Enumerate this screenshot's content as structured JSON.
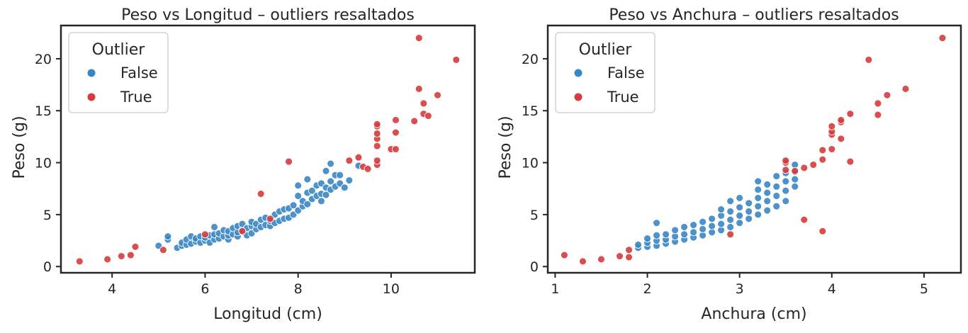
{
  "colors": {
    "false": "#3a86c4",
    "true": "#d63b3d",
    "axis": "#262626"
  },
  "chart_data": [
    {
      "type": "scatter",
      "title": "Peso vs Longitud – outliers resaltados",
      "xlabel": "Longitud (cm)",
      "ylabel": "Peso (g)",
      "xlim": [
        2.9,
        11.8
      ],
      "ylim": [
        -0.6,
        23.2
      ],
      "xticks": [
        "4",
        "6",
        "8",
        "10"
      ],
      "yticks": [
        "0",
        "5",
        "10",
        "15",
        "20"
      ],
      "xtick_values": [
        4,
        6,
        8,
        10
      ],
      "ytick_values": [
        0,
        5,
        10,
        15,
        20
      ],
      "legend": {
        "title": "Outlier",
        "entries": [
          "False",
          "True"
        ],
        "placement": "top-left"
      },
      "series": [
        {
          "name": "False",
          "points": [
            [
              5,
              2.0
            ],
            [
              5.2,
              2.6
            ],
            [
              5.2,
              2.9
            ],
            [
              5.4,
              1.8
            ],
            [
              5.5,
              2.0
            ],
            [
              5.5,
              2.3
            ],
            [
              5.6,
              2.1
            ],
            [
              5.6,
              2.6
            ],
            [
              5.7,
              2.2
            ],
            [
              5.7,
              2.9
            ],
            [
              5.8,
              2.4
            ],
            [
              5.8,
              2.7
            ],
            [
              5.9,
              2.3
            ],
            [
              5.9,
              2.9
            ],
            [
              6.0,
              2.5
            ],
            [
              6.0,
              2.8
            ],
            [
              6.1,
              2.3
            ],
            [
              6.1,
              3.0
            ],
            [
              6.2,
              2.6
            ],
            [
              6.2,
              3.1
            ],
            [
              6.2,
              3.8
            ],
            [
              6.3,
              2.7
            ],
            [
              6.3,
              3.2
            ],
            [
              6.4,
              2.9
            ],
            [
              6.4,
              3.5
            ],
            [
              6.5,
              2.6
            ],
            [
              6.5,
              3.0
            ],
            [
              6.5,
              3.4
            ],
            [
              6.6,
              3.1
            ],
            [
              6.6,
              3.7
            ],
            [
              6.7,
              2.9
            ],
            [
              6.7,
              3.3
            ],
            [
              6.7,
              3.9
            ],
            [
              6.8,
              3.5
            ],
            [
              6.8,
              4.1
            ],
            [
              6.9,
              3.0
            ],
            [
              6.9,
              3.7
            ],
            [
              7.0,
              3.2
            ],
            [
              7.0,
              3.9
            ],
            [
              7.0,
              4.3
            ],
            [
              7.1,
              3.6
            ],
            [
              7.1,
              4.1
            ],
            [
              7.2,
              3.8
            ],
            [
              7.2,
              4.5
            ],
            [
              7.3,
              4.0
            ],
            [
              7.3,
              4.7
            ],
            [
              7.4,
              3.9
            ],
            [
              7.4,
              4.4
            ],
            [
              7.5,
              4.2
            ],
            [
              7.5,
              5.0
            ],
            [
              7.6,
              4.4
            ],
            [
              7.6,
              5.3
            ],
            [
              7.7,
              4.6
            ],
            [
              7.7,
              5.5
            ],
            [
              7.8,
              4.7
            ],
            [
              7.8,
              5.6
            ],
            [
              7.9,
              5.0
            ],
            [
              7.9,
              5.9
            ],
            [
              8.0,
              5.4
            ],
            [
              8.0,
              6.8
            ],
            [
              8.0,
              7.8
            ],
            [
              8.1,
              5.8
            ],
            [
              8.1,
              6.3
            ],
            [
              8.2,
              6.0
            ],
            [
              8.2,
              7.1
            ],
            [
              8.2,
              8.4
            ],
            [
              8.3,
              6.5
            ],
            [
              8.3,
              7.3
            ],
            [
              8.4,
              6.8
            ],
            [
              8.4,
              7.8
            ],
            [
              8.5,
              6.3
            ],
            [
              8.5,
              7.0
            ],
            [
              8.5,
              8.0
            ],
            [
              8.6,
              6.9
            ],
            [
              8.6,
              7.6
            ],
            [
              8.6,
              9.2
            ],
            [
              8.7,
              7.4
            ],
            [
              8.7,
              8.2
            ],
            [
              8.7,
              9.9
            ],
            [
              8.8,
              7.7
            ],
            [
              8.8,
              8.8
            ],
            [
              8.9,
              8.0
            ],
            [
              8.9,
              8.8
            ],
            [
              9.0,
              7.6
            ],
            [
              9.1,
              8.3
            ],
            [
              9.3,
              9.7
            ]
          ]
        },
        {
          "name": "True",
          "points": [
            [
              3.3,
              0.5
            ],
            [
              3.9,
              0.7
            ],
            [
              4.2,
              1.0
            ],
            [
              4.4,
              1.1
            ],
            [
              4.5,
              1.9
            ],
            [
              5.1,
              1.6
            ],
            [
              6.0,
              3.1
            ],
            [
              6.8,
              3.4
            ],
            [
              7.2,
              7.0
            ],
            [
              7.4,
              4.6
            ],
            [
              7.8,
              10.1
            ],
            [
              9.1,
              10.2
            ],
            [
              9.3,
              10.5
            ],
            [
              9.4,
              9.6
            ],
            [
              9.5,
              9.4
            ],
            [
              9.7,
              9.8
            ],
            [
              9.7,
              10.2
            ],
            [
              9.7,
              11.6
            ],
            [
              9.7,
              12.3
            ],
            [
              9.7,
              12.8
            ],
            [
              9.7,
              13.5
            ],
            [
              9.7,
              13.7
            ],
            [
              10.0,
              11.3
            ],
            [
              10.1,
              11.3
            ],
            [
              10.1,
              12.9
            ],
            [
              10.1,
              14.1
            ],
            [
              10.5,
              14.0
            ],
            [
              10.6,
              17.1
            ],
            [
              10.6,
              22.0
            ],
            [
              10.7,
              15.7
            ],
            [
              10.7,
              14.7
            ],
            [
              10.8,
              14.5
            ],
            [
              11.0,
              16.5
            ],
            [
              11.4,
              19.9
            ]
          ]
        }
      ]
    },
    {
      "type": "scatter",
      "title": "Peso vs Anchura – outliers resaltados",
      "xlabel": "Anchura (cm)",
      "ylabel": "Peso (g)",
      "xlim": [
        0.92,
        5.4
      ],
      "ylim": [
        -0.6,
        23.2
      ],
      "xticks": [
        "1",
        "2",
        "3",
        "4",
        "5"
      ],
      "yticks": [
        "0",
        "5",
        "10",
        "15",
        "20"
      ],
      "xtick_values": [
        1,
        2,
        3,
        4,
        5
      ],
      "ytick_values": [
        0,
        5,
        10,
        15,
        20
      ],
      "legend": {
        "title": "Outlier",
        "entries": [
          "False",
          "True"
        ],
        "placement": "top-left"
      },
      "series": [
        {
          "name": "False",
          "points": [
            [
              1.9,
              1.8
            ],
            [
              1.9,
              2.1
            ],
            [
              2.0,
              1.9
            ],
            [
              2.0,
              2.3
            ],
            [
              2.0,
              2.7
            ],
            [
              2.1,
              2.0
            ],
            [
              2.1,
              2.5
            ],
            [
              2.1,
              3.0
            ],
            [
              2.1,
              4.2
            ],
            [
              2.2,
              2.2
            ],
            [
              2.2,
              2.6
            ],
            [
              2.2,
              3.1
            ],
            [
              2.3,
              2.4
            ],
            [
              2.3,
              2.9
            ],
            [
              2.3,
              3.5
            ],
            [
              2.4,
              2.6
            ],
            [
              2.4,
              3.1
            ],
            [
              2.4,
              3.8
            ],
            [
              2.5,
              2.8
            ],
            [
              2.5,
              3.3
            ],
            [
              2.5,
              4.0
            ],
            [
              2.6,
              3.0
            ],
            [
              2.6,
              3.6
            ],
            [
              2.6,
              4.3
            ],
            [
              2.7,
              3.3
            ],
            [
              2.7,
              3.9
            ],
            [
              2.7,
              4.6
            ],
            [
              2.8,
              3.5
            ],
            [
              2.8,
              4.1
            ],
            [
              2.8,
              4.9
            ],
            [
              2.8,
              5.5
            ],
            [
              2.9,
              3.8
            ],
            [
              2.9,
              4.5
            ],
            [
              2.9,
              5.3
            ],
            [
              2.9,
              6.3
            ],
            [
              3.0,
              4.2
            ],
            [
              3.0,
              4.9
            ],
            [
              3.0,
              5.7
            ],
            [
              3.0,
              6.6
            ],
            [
              3.1,
              4.6
            ],
            [
              3.1,
              5.3
            ],
            [
              3.1,
              6.1
            ],
            [
              3.2,
              5.0
            ],
            [
              3.2,
              5.8
            ],
            [
              3.2,
              6.6
            ],
            [
              3.2,
              7.4
            ],
            [
              3.2,
              8.2
            ],
            [
              3.3,
              5.4
            ],
            [
              3.3,
              6.3
            ],
            [
              3.3,
              7.1
            ],
            [
              3.3,
              7.9
            ],
            [
              3.4,
              5.8
            ],
            [
              3.4,
              6.8
            ],
            [
              3.4,
              7.7
            ],
            [
              3.4,
              8.7
            ],
            [
              3.5,
              6.3
            ],
            [
              3.5,
              7.3
            ],
            [
              3.5,
              8.2
            ],
            [
              3.5,
              9.0
            ],
            [
              3.6,
              7.7
            ],
            [
              3.6,
              8.4
            ],
            [
              3.6,
              9.1
            ],
            [
              3.6,
              9.8
            ]
          ]
        },
        {
          "name": "True",
          "points": [
            [
              1.1,
              1.1
            ],
            [
              1.3,
              0.5
            ],
            [
              1.5,
              0.7
            ],
            [
              1.7,
              1.0
            ],
            [
              1.8,
              0.9
            ],
            [
              1.8,
              1.6
            ],
            [
              2.9,
              3.1
            ],
            [
              3.5,
              9.3
            ],
            [
              3.5,
              10.0
            ],
            [
              3.5,
              10.2
            ],
            [
              3.6,
              9.2
            ],
            [
              3.7,
              9.5
            ],
            [
              3.7,
              4.5
            ],
            [
              3.8,
              9.8
            ],
            [
              3.9,
              10.3
            ],
            [
              3.9,
              11.2
            ],
            [
              3.9,
              3.4
            ],
            [
              4.0,
              11.3
            ],
            [
              4.0,
              12.7
            ],
            [
              4.0,
              13.0
            ],
            [
              4.0,
              13.5
            ],
            [
              4.1,
              12.3
            ],
            [
              4.1,
              13.9
            ],
            [
              4.1,
              14.1
            ],
            [
              4.2,
              14.7
            ],
            [
              4.2,
              10.1
            ],
            [
              4.4,
              19.9
            ],
            [
              4.5,
              14.6
            ],
            [
              4.5,
              15.7
            ],
            [
              4.6,
              16.5
            ],
            [
              4.8,
              17.1
            ],
            [
              5.2,
              22.0
            ]
          ]
        }
      ]
    }
  ]
}
